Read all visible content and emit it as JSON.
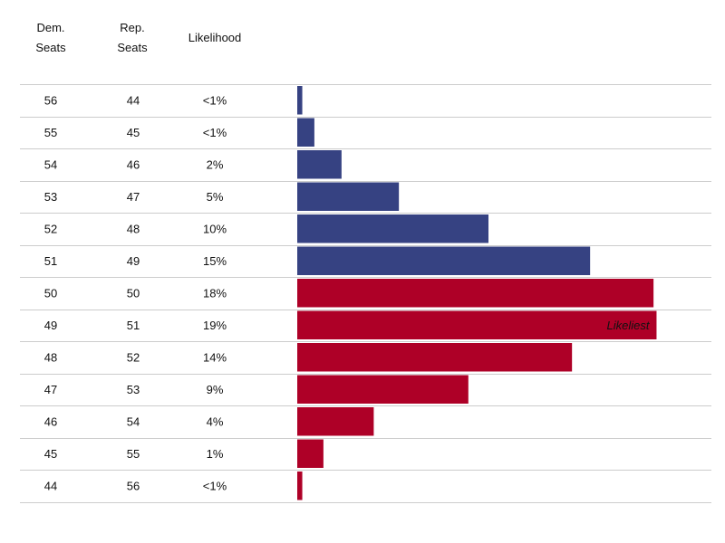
{
  "headers": {
    "dem_line1": "Dem.",
    "dem_line2": "Seats",
    "rep_line1": "Rep.",
    "rep_line2": "Seats",
    "likelihood": "Likelihood"
  },
  "annotation": "Likeliest",
  "colors": {
    "dem": "#364282",
    "rep": "#ae0027",
    "grid": "#cccccc",
    "text": "#111111"
  },
  "chart_data": {
    "type": "bar",
    "orientation": "horizontal",
    "columns": [
      "Dem. Seats",
      "Rep. Seats",
      "Likelihood"
    ],
    "rows": [
      {
        "dem": "56",
        "rep": "44",
        "likelihood": "<1%",
        "value": 0.5,
        "party": "dem"
      },
      {
        "dem": "55",
        "rep": "45",
        "likelihood": "<1%",
        "value": 1.7,
        "party": "dem"
      },
      {
        "dem": "54",
        "rep": "46",
        "likelihood": "2%",
        "value": 4.4,
        "party": "dem"
      },
      {
        "dem": "53",
        "rep": "47",
        "likelihood": "5%",
        "value": 10.1,
        "party": "dem"
      },
      {
        "dem": "52",
        "rep": "48",
        "likelihood": "10%",
        "value": 19.0,
        "party": "dem"
      },
      {
        "dem": "51",
        "rep": "49",
        "likelihood": "15%",
        "value": 29.1,
        "party": "dem"
      },
      {
        "dem": "50",
        "rep": "50",
        "likelihood": "18%",
        "value": 35.4,
        "party": "rep"
      },
      {
        "dem": "49",
        "rep": "51",
        "likelihood": "19%",
        "value": 35.7,
        "party": "rep",
        "annotation": "Likeliest"
      },
      {
        "dem": "48",
        "rep": "52",
        "likelihood": "14%",
        "value": 27.3,
        "party": "rep"
      },
      {
        "dem": "47",
        "rep": "53",
        "likelihood": "9%",
        "value": 17.0,
        "party": "rep"
      },
      {
        "dem": "46",
        "rep": "54",
        "likelihood": "4%",
        "value": 7.6,
        "party": "rep"
      },
      {
        "dem": "45",
        "rep": "55",
        "likelihood": "1%",
        "value": 2.6,
        "party": "rep"
      },
      {
        "dem": "44",
        "rep": "56",
        "likelihood": "<1%",
        "value": 0.5,
        "party": "rep"
      }
    ],
    "xlim": [
      0,
      38
    ],
    "grid": true,
    "legend": "none"
  }
}
